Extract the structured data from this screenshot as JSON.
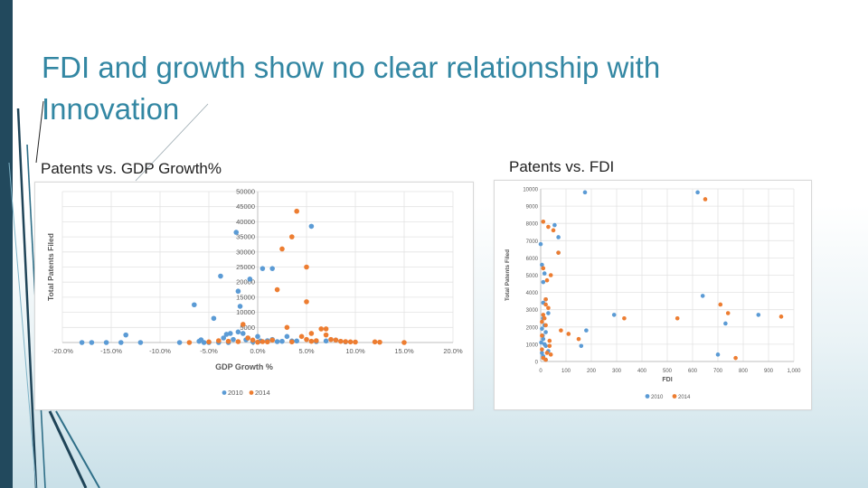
{
  "slide": {
    "title": "FDI and growth show no clear relationship with Innovation",
    "label_left": "Patents vs. GDP Growth%",
    "label_right": "Patents vs. FDI"
  },
  "colors": {
    "series_2010": "#5b9bd5",
    "series_2014": "#ed7d31",
    "title": "#3387a3",
    "sidebar": "#22495d"
  },
  "chart_data": [
    {
      "type": "scatter",
      "title": "",
      "xlabel": "GDP Growth %",
      "ylabel": "Total Patents Filed",
      "xlim": [
        -20,
        20
      ],
      "ylim": [
        0,
        50000
      ],
      "xticks": [
        -20,
        -15,
        -10,
        -5,
        0,
        5,
        10,
        15,
        20
      ],
      "xtick_labels": [
        "-20.0%",
        "-15.0%",
        "-10.0%",
        "-5.0%",
        "0.0%",
        "5.0%",
        "10.0%",
        "15.0%",
        "20.0%"
      ],
      "yticks": [
        0,
        5000,
        10000,
        15000,
        20000,
        25000,
        30000,
        35000,
        40000,
        45000,
        50000
      ],
      "ytick_labels": [
        "0",
        "5000",
        "10000",
        "15000",
        "20000",
        "25000",
        "30000",
        "35000",
        "40000",
        "45000",
        "50000"
      ],
      "legend": "bottom",
      "series": [
        {
          "name": "2010",
          "points": [
            [
              -18,
              0
            ],
            [
              -17,
              0
            ],
            [
              -15.5,
              0
            ],
            [
              -13.5,
              2500
            ],
            [
              -14,
              0
            ],
            [
              -12,
              0
            ],
            [
              -8,
              0
            ],
            [
              -6.5,
              12500
            ],
            [
              -6,
              400
            ],
            [
              -5.8,
              900
            ],
            [
              -5.5,
              0
            ],
            [
              -5,
              0
            ],
            [
              -4.5,
              8000
            ],
            [
              -4,
              0
            ],
            [
              -3.8,
              22000
            ],
            [
              -3.5,
              1500
            ],
            [
              -3,
              0
            ],
            [
              -3.2,
              2700
            ],
            [
              -2.8,
              3000
            ],
            [
              -2.5,
              1000
            ],
            [
              -2.2,
              36500
            ],
            [
              -2,
              17000
            ],
            [
              -2,
              3500
            ],
            [
              -1.8,
              12000
            ],
            [
              -1.5,
              3000
            ],
            [
              -1.2,
              900
            ],
            [
              -1,
              1500
            ],
            [
              -0.8,
              21000
            ],
            [
              -0.5,
              300
            ],
            [
              0,
              2000
            ],
            [
              0.3,
              500
            ],
            [
              0.5,
              24500
            ],
            [
              1,
              600
            ],
            [
              1.5,
              24500
            ],
            [
              1.5,
              1000
            ],
            [
              2,
              300
            ],
            [
              2.5,
              400
            ],
            [
              3,
              2000
            ],
            [
              3.5,
              500
            ],
            [
              4,
              500
            ],
            [
              5.5,
              38500
            ],
            [
              6,
              300
            ],
            [
              7,
              500
            ],
            [
              8,
              800
            ],
            [
              9,
              200
            ]
          ]
        },
        {
          "name": "2014",
          "points": [
            [
              -7,
              0
            ],
            [
              -5,
              200
            ],
            [
              -4,
              600
            ],
            [
              -3,
              400
            ],
            [
              -2,
              300
            ],
            [
              -1.5,
              6000
            ],
            [
              -1,
              1500
            ],
            [
              -0.5,
              800
            ],
            [
              0,
              100
            ],
            [
              0.5,
              300
            ],
            [
              1,
              200
            ],
            [
              1.5,
              800
            ],
            [
              2,
              17500
            ],
            [
              2.5,
              31000
            ],
            [
              3,
              5000
            ],
            [
              3.5,
              35000
            ],
            [
              3.5,
              200
            ],
            [
              4,
              43500
            ],
            [
              4.5,
              2000
            ],
            [
              5,
              1000
            ],
            [
              5,
              13500
            ],
            [
              5,
              25000
            ],
            [
              5.5,
              3000
            ],
            [
              5.5,
              400
            ],
            [
              6,
              600
            ],
            [
              6.5,
              4500
            ],
            [
              7,
              4500
            ],
            [
              7,
              2500
            ],
            [
              7.5,
              1000
            ],
            [
              8,
              800
            ],
            [
              8.5,
              400
            ],
            [
              9,
              300
            ],
            [
              9.5,
              200
            ],
            [
              10,
              150
            ],
            [
              12,
              200
            ],
            [
              12.5,
              100
            ],
            [
              15,
              0
            ]
          ]
        }
      ]
    },
    {
      "type": "scatter",
      "title": "",
      "xlabel": "FDI",
      "ylabel": "Total Patents Filed",
      "xlim": [
        0,
        1000
      ],
      "ylim": [
        0,
        10000
      ],
      "xticks": [
        0,
        100,
        200,
        300,
        400,
        500,
        600,
        700,
        800,
        900,
        1000
      ],
      "xtick_labels": [
        "0",
        "100",
        "200",
        "300",
        "400",
        "500",
        "600",
        "700",
        "800",
        "900",
        "1,000"
      ],
      "yticks": [
        0,
        1000,
        2000,
        3000,
        4000,
        5000,
        6000,
        7000,
        8000,
        9000,
        10000
      ],
      "ytick_labels": [
        "0",
        "1000",
        "2000",
        "3000",
        "4000",
        "5000",
        "6000",
        "7000",
        "8000",
        "9000",
        "10000"
      ],
      "legend": "bottom",
      "series": [
        {
          "name": "2010",
          "points": [
            [
              175,
              9800
            ],
            [
              620,
              9800
            ],
            [
              55,
              7900
            ],
            [
              70,
              7200
            ],
            [
              0,
              6800
            ],
            [
              70,
              6300
            ],
            [
              5,
              5600
            ],
            [
              15,
              5100
            ],
            [
              10,
              4600
            ],
            [
              20,
              3600
            ],
            [
              10,
              3400
            ],
            [
              30,
              2800
            ],
            [
              10,
              2500
            ],
            [
              15,
              2100
            ],
            [
              5,
              1900
            ],
            [
              20,
              1700
            ],
            [
              8,
              1500
            ],
            [
              10,
              1300
            ],
            [
              2,
              1100
            ],
            [
              15,
              1000
            ],
            [
              20,
              900
            ],
            [
              30,
              600
            ],
            [
              5,
              500
            ],
            [
              160,
              900
            ],
            [
              180,
              1800
            ],
            [
              290,
              2700
            ],
            [
              640,
              3800
            ],
            [
              730,
              2200
            ],
            [
              860,
              2700
            ],
            [
              700,
              400
            ],
            [
              10,
              300
            ],
            [
              20,
              100
            ]
          ]
        },
        {
          "name": "2014",
          "points": [
            [
              650,
              9400
            ],
            [
              10,
              8100
            ],
            [
              30,
              7800
            ],
            [
              50,
              7600
            ],
            [
              70,
              6300
            ],
            [
              10,
              5400
            ],
            [
              40,
              5000
            ],
            [
              25,
              4700
            ],
            [
              20,
              3600
            ],
            [
              20,
              3300
            ],
            [
              30,
              3100
            ],
            [
              10,
              2700
            ],
            [
              15,
              2500
            ],
            [
              5,
              2300
            ],
            [
              20,
              2100
            ],
            [
              110,
              1600
            ],
            [
              150,
              1300
            ],
            [
              80,
              1800
            ],
            [
              330,
              2500
            ],
            [
              540,
              2500
            ],
            [
              710,
              3300
            ],
            [
              740,
              2800
            ],
            [
              950,
              2600
            ],
            [
              770,
              200
            ],
            [
              35,
              900
            ],
            [
              5,
              700
            ],
            [
              40,
              400
            ],
            [
              10,
              200
            ],
            [
              20,
              100
            ],
            [
              25,
              500
            ],
            [
              35,
              1200
            ],
            [
              5,
              1500
            ]
          ]
        }
      ]
    }
  ]
}
